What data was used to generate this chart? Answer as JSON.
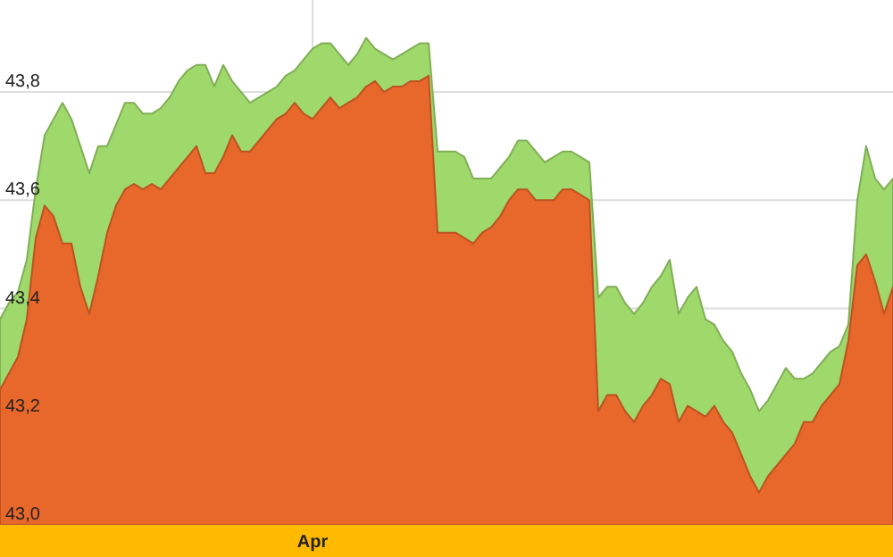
{
  "chart_data": {
    "type": "area",
    "categories": [
      null,
      null,
      null,
      null,
      null,
      null,
      null,
      null,
      null,
      null,
      null,
      null,
      null,
      null,
      null,
      null,
      null,
      null,
      null,
      null,
      null,
      null,
      null,
      null,
      null,
      null,
      null,
      null,
      null,
      null,
      null,
      null,
      null,
      null,
      null,
      "Apr",
      null,
      null,
      null,
      null,
      null,
      null,
      null,
      null,
      null,
      null,
      null,
      null,
      null,
      null,
      null,
      null,
      null,
      null,
      null,
      null,
      null,
      null,
      null,
      null,
      null,
      null,
      null,
      null,
      null,
      null,
      null,
      null,
      null,
      null,
      null,
      null,
      null,
      null,
      null,
      null,
      null,
      null,
      null,
      null,
      null,
      null,
      null,
      null,
      null,
      null,
      null,
      null,
      null,
      null,
      null,
      null,
      null,
      null,
      null,
      null,
      null,
      null,
      null,
      null,
      null
    ],
    "series": [
      {
        "color": "#9fd86b",
        "values": [
          43.38,
          43.41,
          43.43,
          43.49,
          43.62,
          43.72,
          43.75,
          43.78,
          43.75,
          43.7,
          43.65,
          43.7,
          43.7,
          43.74,
          43.78,
          43.78,
          43.76,
          43.76,
          43.77,
          43.79,
          43.82,
          43.84,
          43.85,
          43.85,
          43.81,
          43.85,
          43.82,
          43.8,
          43.78,
          43.79,
          43.8,
          43.81,
          43.83,
          43.84,
          43.86,
          43.88,
          43.89,
          43.89,
          43.87,
          43.85,
          43.87,
          43.9,
          43.88,
          43.87,
          43.86,
          43.87,
          43.88,
          43.89,
          43.89,
          43.69,
          43.69,
          43.69,
          43.68,
          43.64,
          43.64,
          43.64,
          43.66,
          43.68,
          43.71,
          43.71,
          43.69,
          43.67,
          43.68,
          43.69,
          43.69,
          43.68,
          43.67,
          43.42,
          43.44,
          43.44,
          43.41,
          43.39,
          43.41,
          43.44,
          43.46,
          43.49,
          43.39,
          43.42,
          43.44,
          43.38,
          43.37,
          43.34,
          43.32,
          43.28,
          43.25,
          43.21,
          43.23,
          43.26,
          43.29,
          43.27,
          43.27,
          43.28,
          43.3,
          43.32,
          43.33,
          43.37,
          43.6,
          43.7,
          43.64,
          43.62,
          43.64
        ]
      },
      {
        "color": "#e8672a",
        "values": [
          43.25,
          43.28,
          43.31,
          43.38,
          43.53,
          43.59,
          43.57,
          43.52,
          43.52,
          43.44,
          43.39,
          43.46,
          43.54,
          43.59,
          43.62,
          43.63,
          43.62,
          43.63,
          43.62,
          43.64,
          43.66,
          43.68,
          43.7,
          43.65,
          43.65,
          43.68,
          43.72,
          43.69,
          43.69,
          43.71,
          43.73,
          43.75,
          43.76,
          43.78,
          43.76,
          43.75,
          43.77,
          43.79,
          43.77,
          43.78,
          43.79,
          43.81,
          43.82,
          43.8,
          43.81,
          43.81,
          43.82,
          43.82,
          43.83,
          43.54,
          43.54,
          43.54,
          43.53,
          43.52,
          43.54,
          43.55,
          43.57,
          43.6,
          43.62,
          43.62,
          43.6,
          43.6,
          43.6,
          43.62,
          43.62,
          43.61,
          43.6,
          43.21,
          43.24,
          43.24,
          43.21,
          43.19,
          43.22,
          43.24,
          43.27,
          43.26,
          43.19,
          43.22,
          43.21,
          43.2,
          43.22,
          43.19,
          43.17,
          43.13,
          43.09,
          43.06,
          43.09,
          43.11,
          43.13,
          43.15,
          43.19,
          43.19,
          43.22,
          43.24,
          43.26,
          43.34,
          43.48,
          43.5,
          43.45,
          43.39,
          43.44
        ]
      }
    ],
    "ylim": [
      43,
      43.97
    ],
    "yticks": [
      {
        "value": 43.0,
        "label": "43,0"
      },
      {
        "value": 43.2,
        "label": "43,2"
      },
      {
        "value": 43.4,
        "label": "43,4"
      },
      {
        "value": 43.6,
        "label": "43,6"
      },
      {
        "value": 43.8,
        "label": "43,8"
      }
    ],
    "grid": true
  }
}
